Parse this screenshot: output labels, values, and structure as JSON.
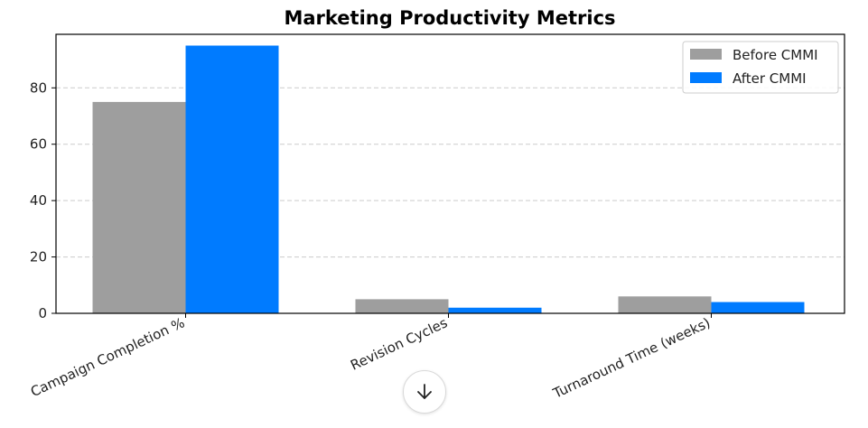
{
  "chart_data": {
    "type": "bar",
    "title": "Marketing Productivity Metrics",
    "xlabel": "",
    "ylabel": "",
    "categories": [
      "Campaign Completion %",
      "Revision Cycles",
      "Turnaround Time (weeks)"
    ],
    "series": [
      {
        "name": "Before CMMI",
        "values": [
          75,
          5,
          6
        ],
        "color": "#9e9e9e"
      },
      {
        "name": "After CMMI",
        "values": [
          95,
          2,
          4
        ],
        "color": "#007bff"
      }
    ],
    "ylim": [
      0,
      99
    ],
    "yticks": [
      0,
      20,
      40,
      60,
      80
    ],
    "grid": "y-dashed",
    "legend_position": "top-right"
  },
  "controls": {
    "scroll_button_icon": "arrow-down-icon"
  }
}
